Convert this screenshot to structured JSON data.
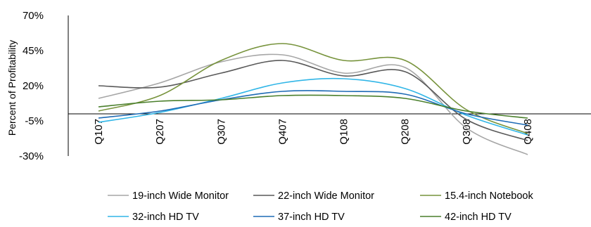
{
  "chart_data": {
    "type": "line",
    "title": "",
    "xlabel": "",
    "ylabel": "Percent of Profitability",
    "ylim": [
      -30,
      70
    ],
    "yticks": [
      "70%",
      "45%",
      "20%",
      "-5%",
      "-30%"
    ],
    "ytick_values": [
      70,
      45,
      20,
      -5,
      -30
    ],
    "x_axis_at": 0,
    "categories": [
      "Q107",
      "Q207",
      "Q307",
      "Q407",
      "Q108",
      "Q208",
      "Q308",
      "Q408"
    ],
    "grid": false,
    "legend_position": "bottom",
    "series": [
      {
        "name": "19-inch Wide Monitor",
        "color": "#a6a6a6",
        "values": [
          11,
          22,
          37,
          42,
          29,
          33,
          -10,
          -29
        ]
      },
      {
        "name": "22-inch Wide Monitor",
        "color": "#595959",
        "values": [
          20,
          19,
          29,
          38,
          27,
          30,
          -4,
          -19
        ]
      },
      {
        "name": "15.4-inch Notebook",
        "color": "#77933c",
        "values": [
          2,
          13,
          38,
          50,
          38,
          38,
          3,
          -14
        ]
      },
      {
        "name": "32-inch HD TV",
        "color": "#31b6e7",
        "values": [
          -6,
          1,
          11,
          22,
          25,
          18,
          -1,
          -15
        ]
      },
      {
        "name": "37-inch HD TV",
        "color": "#1f6bb5",
        "values": [
          -3,
          2,
          10,
          16,
          16,
          14,
          0,
          -8
        ]
      },
      {
        "name": "42-inch HD TV",
        "color": "#4a7f2c",
        "values": [
          5,
          9,
          10,
          13,
          13,
          11,
          2,
          -3
        ]
      }
    ]
  }
}
